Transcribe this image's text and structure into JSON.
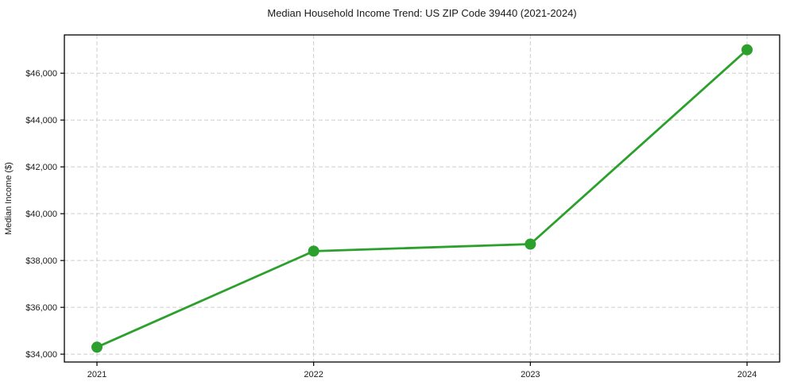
{
  "chart_data": {
    "type": "line",
    "title": "Median Household Income Trend: US ZIP Code 39440 (2021-2024)",
    "xlabel": "",
    "ylabel": "Median Income ($)",
    "categories": [
      "2021",
      "2022",
      "2023",
      "2024"
    ],
    "values": [
      34300,
      38400,
      38700,
      47000
    ],
    "y_ticks": [
      34000,
      36000,
      38000,
      40000,
      42000,
      44000,
      46000
    ],
    "y_tick_labels": [
      "$34,000",
      "$36,000",
      "$38,000",
      "$40,000",
      "$42,000",
      "$44,000",
      "$46,000"
    ],
    "ylim": [
      33665,
      47635
    ],
    "grid": "dashed-both-axes",
    "legend": "none",
    "marker": "filled-circle",
    "colors": {
      "line": "#2ca02c",
      "marker": "#2ca02c",
      "grid": "#cdcdcd",
      "axis": "#000000",
      "text": "#1a1a1a",
      "background": "#ffffff"
    }
  }
}
